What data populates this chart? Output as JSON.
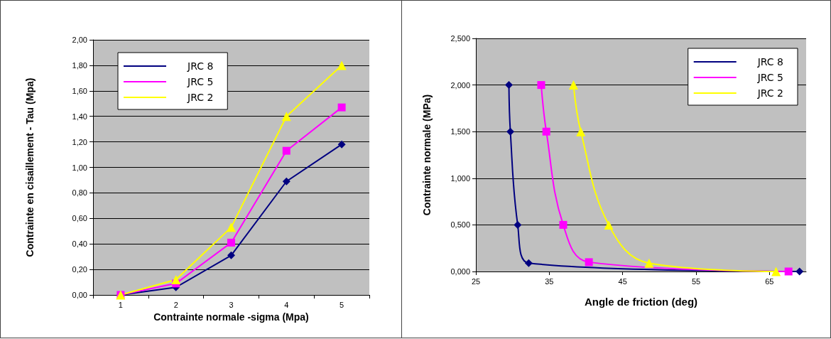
{
  "chart_data": [
    {
      "type": "line",
      "xlabel": "Contrainte normale -sigma (Mpa)",
      "ylabel": "Contrainte en cisaillement - Tau (Mpa)",
      "categories": [
        "1",
        "2",
        "3",
        "4",
        "5"
      ],
      "series": [
        {
          "name": "JRC 8",
          "color": "#000080",
          "marker": "diamond",
          "values": [
            0,
            0.06,
            0.31,
            0.89,
            1.18
          ]
        },
        {
          "name": "JRC 5",
          "color": "#ff00ff",
          "marker": "square",
          "values": [
            0,
            0.09,
            0.41,
            1.13,
            1.47
          ]
        },
        {
          "name": "JRC 2",
          "color": "#ffff00",
          "marker": "triangle",
          "values": [
            0,
            0.12,
            0.53,
            1.4,
            1.8
          ]
        }
      ],
      "ylim": [
        0,
        2
      ],
      "yticks": [
        {
          "value": 0,
          "label": "0,00"
        },
        {
          "value": 0.2,
          "label": "0,20"
        },
        {
          "value": 0.4,
          "label": "0,40"
        },
        {
          "value": 0.6,
          "label": "0,60"
        },
        {
          "value": 0.8,
          "label": "0,80"
        },
        {
          "value": 1,
          "label": "1,00"
        },
        {
          "value": 1.2,
          "label": "1,20"
        },
        {
          "value": 1.4,
          "label": "1,40"
        },
        {
          "value": 1.6,
          "label": "1,60"
        },
        {
          "value": 1.8,
          "label": "1,80"
        },
        {
          "value": 2,
          "label": "2,00"
        }
      ],
      "grid": "y",
      "legend": "top left"
    },
    {
      "type": "line",
      "xlabel": "Angle de friction (deg)",
      "ylabel": "Contrainte normale (MPa)",
      "series": [
        {
          "name": "JRC 8",
          "color": "#000080",
          "marker": "diamond",
          "x": [
            29.5,
            29.7,
            30.7,
            32.2,
            69.1
          ],
          "values": [
            2,
            1.5,
            0.5,
            0.09,
            0
          ]
        },
        {
          "name": "JRC 5",
          "color": "#ff00ff",
          "marker": "square",
          "x": [
            33.9,
            34.6,
            36.9,
            40.4,
            67.6
          ],
          "values": [
            2,
            1.5,
            0.5,
            0.1,
            0
          ]
        },
        {
          "name": "JRC 2",
          "color": "#ffff00",
          "marker": "triangle",
          "x": [
            38.3,
            39.3,
            43.1,
            48.6,
            65.9
          ],
          "values": [
            2,
            1.5,
            0.5,
            0.09,
            0
          ]
        }
      ],
      "xlim": [
        25,
        70
      ],
      "xticks": [
        25,
        35,
        45,
        55,
        65
      ],
      "ylim": [
        0,
        2.5
      ],
      "yticks": [
        {
          "value": 0,
          "label": "0,000"
        },
        {
          "value": 0.5,
          "label": "0,500"
        },
        {
          "value": 1,
          "label": "1,000"
        },
        {
          "value": 1.5,
          "label": "1,500"
        },
        {
          "value": 2,
          "label": "2,000"
        },
        {
          "value": 2.5,
          "label": "2,500"
        }
      ],
      "grid": "y",
      "legend": "top right"
    }
  ]
}
